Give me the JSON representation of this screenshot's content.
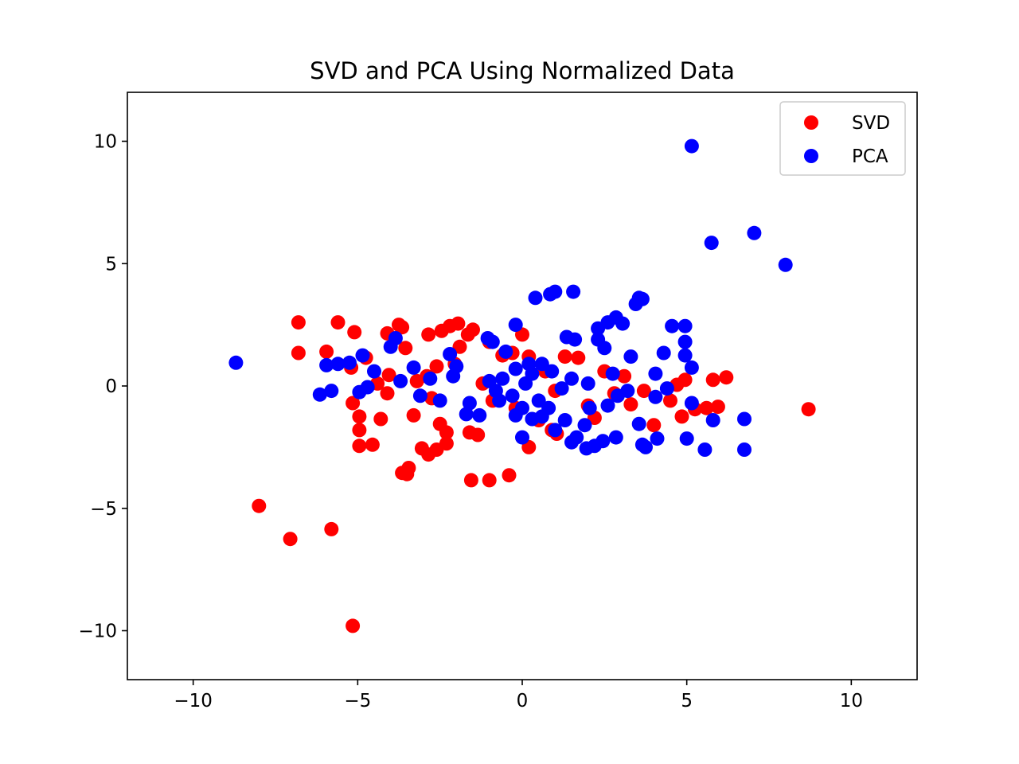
{
  "chart_data": {
    "type": "scatter",
    "title": "SVD and PCA Using Normalized Data",
    "xlabel": "",
    "ylabel": "",
    "xlim": [
      -12,
      12
    ],
    "ylim": [
      -12,
      12
    ],
    "xticks": [
      {
        "value": -10,
        "label": "−10"
      },
      {
        "value": -5,
        "label": "−5"
      },
      {
        "value": 0,
        "label": "0"
      },
      {
        "value": 5,
        "label": "5"
      },
      {
        "value": 10,
        "label": "10"
      }
    ],
    "yticks": [
      {
        "value": -10,
        "label": "−10"
      },
      {
        "value": -5,
        "label": "−5"
      },
      {
        "value": 0,
        "label": "0"
      },
      {
        "value": 5,
        "label": "5"
      },
      {
        "value": 10,
        "label": "10"
      }
    ],
    "grid": false,
    "legend": "top-right",
    "series": [
      {
        "name": "SVD",
        "color": "#ff0000",
        "points": [
          [
            -5.15,
            -9.8
          ],
          [
            -7.05,
            -6.25
          ],
          [
            -8.0,
            -4.9
          ],
          [
            -5.8,
            -5.85
          ],
          [
            8.7,
            -0.95
          ],
          [
            6.2,
            0.35
          ],
          [
            5.8,
            0.25
          ],
          [
            -6.8,
            2.6
          ],
          [
            -5.6,
            2.6
          ],
          [
            -6.8,
            1.35
          ],
          [
            -5.95,
            1.4
          ],
          [
            -5.1,
            2.2
          ],
          [
            -5.2,
            0.75
          ],
          [
            -4.75,
            1.15
          ],
          [
            -5.15,
            -0.7
          ],
          [
            -4.95,
            -1.25
          ],
          [
            -4.95,
            -1.8
          ],
          [
            -4.95,
            -2.45
          ],
          [
            -4.55,
            -2.4
          ],
          [
            -4.3,
            -1.35
          ],
          [
            -4.1,
            -0.3
          ],
          [
            -4.05,
            0.45
          ],
          [
            -4.1,
            2.15
          ],
          [
            -3.75,
            2.5
          ],
          [
            -3.55,
            1.55
          ],
          [
            -3.65,
            2.4
          ],
          [
            -3.3,
            -1.2
          ],
          [
            -3.45,
            -3.35
          ],
          [
            -3.65,
            -3.55
          ],
          [
            -3.5,
            -3.6
          ],
          [
            -3.05,
            -2.55
          ],
          [
            -2.85,
            -2.8
          ],
          [
            -2.6,
            -2.6
          ],
          [
            -2.5,
            -1.55
          ],
          [
            -2.3,
            -1.9
          ],
          [
            -2.3,
            -2.35
          ],
          [
            -2.75,
            -0.5
          ],
          [
            -2.9,
            0.4
          ],
          [
            -2.6,
            0.8
          ],
          [
            -2.85,
            2.1
          ],
          [
            -2.45,
            2.25
          ],
          [
            -2.2,
            2.45
          ],
          [
            -1.95,
            2.55
          ],
          [
            -1.65,
            2.1
          ],
          [
            -1.5,
            2.3
          ],
          [
            -1.9,
            1.6
          ],
          [
            -2.05,
            0.9
          ],
          [
            -1.6,
            -1.9
          ],
          [
            -1.35,
            -2.0
          ],
          [
            -1.55,
            -3.85
          ],
          [
            -1.0,
            -3.85
          ],
          [
            -0.4,
            -3.65
          ],
          [
            0.2,
            -2.5
          ],
          [
            0.0,
            2.1
          ],
          [
            -0.6,
            1.25
          ],
          [
            -0.3,
            1.35
          ],
          [
            0.2,
            1.2
          ],
          [
            0.5,
            -1.4
          ],
          [
            0.9,
            -1.8
          ],
          [
            1.05,
            -1.95
          ],
          [
            1.3,
            1.2
          ],
          [
            1.7,
            1.15
          ],
          [
            2.0,
            -0.8
          ],
          [
            2.2,
            -1.3
          ],
          [
            2.8,
            -0.3
          ],
          [
            3.1,
            0.4
          ],
          [
            3.3,
            -0.75
          ],
          [
            4.0,
            -1.6
          ],
          [
            4.5,
            -0.6
          ],
          [
            4.7,
            0.05
          ],
          [
            4.85,
            -1.25
          ],
          [
            4.95,
            0.25
          ],
          [
            5.25,
            -0.95
          ],
          [
            5.6,
            -0.9
          ],
          [
            5.95,
            -0.85
          ],
          [
            -1.2,
            0.1
          ],
          [
            -0.9,
            -0.6
          ],
          [
            -0.2,
            -0.9
          ],
          [
            0.7,
            0.6
          ],
          [
            1.0,
            -0.2
          ],
          [
            -3.2,
            0.2
          ],
          [
            -4.4,
            0.1
          ],
          [
            -1.0,
            1.8
          ],
          [
            2.5,
            0.6
          ],
          [
            3.7,
            -0.2
          ]
        ]
      },
      {
        "name": "PCA",
        "color": "#0000ff",
        "points": [
          [
            5.15,
            9.8
          ],
          [
            5.75,
            5.85
          ],
          [
            7.05,
            6.25
          ],
          [
            8.0,
            4.95
          ],
          [
            -8.7,
            0.95
          ],
          [
            6.75,
            -2.6
          ],
          [
            6.75,
            -1.35
          ],
          [
            5.55,
            -2.6
          ],
          [
            5.0,
            -2.15
          ],
          [
            5.8,
            -1.4
          ],
          [
            5.15,
            -0.7
          ],
          [
            5.15,
            0.75
          ],
          [
            4.95,
            1.25
          ],
          [
            4.95,
            1.8
          ],
          [
            4.95,
            2.45
          ],
          [
            4.55,
            2.45
          ],
          [
            4.3,
            1.35
          ],
          [
            4.05,
            0.5
          ],
          [
            4.05,
            -0.45
          ],
          [
            4.1,
            -2.15
          ],
          [
            3.75,
            -2.5
          ],
          [
            3.55,
            -1.55
          ],
          [
            3.65,
            -2.4
          ],
          [
            3.3,
            1.2
          ],
          [
            3.45,
            3.35
          ],
          [
            3.65,
            3.55
          ],
          [
            3.55,
            3.6
          ],
          [
            3.05,
            2.55
          ],
          [
            2.85,
            2.8
          ],
          [
            2.6,
            2.6
          ],
          [
            2.5,
            1.55
          ],
          [
            2.3,
            1.9
          ],
          [
            2.3,
            2.35
          ],
          [
            2.75,
            0.5
          ],
          [
            2.9,
            -0.4
          ],
          [
            2.6,
            -0.8
          ],
          [
            2.85,
            -2.1
          ],
          [
            2.45,
            -2.25
          ],
          [
            2.2,
            -2.45
          ],
          [
            1.95,
            -2.55
          ],
          [
            1.65,
            -2.1
          ],
          [
            1.5,
            -2.3
          ],
          [
            1.9,
            -1.6
          ],
          [
            2.05,
            -0.9
          ],
          [
            1.6,
            1.9
          ],
          [
            1.35,
            2.0
          ],
          [
            1.55,
            3.85
          ],
          [
            1.0,
            3.85
          ],
          [
            0.85,
            3.75
          ],
          [
            0.4,
            3.6
          ],
          [
            -0.2,
            2.5
          ],
          [
            0.0,
            -2.1
          ],
          [
            0.6,
            -1.25
          ],
          [
            0.3,
            -1.35
          ],
          [
            -0.2,
            -1.2
          ],
          [
            -0.5,
            1.4
          ],
          [
            -0.9,
            1.8
          ],
          [
            -1.05,
            1.95
          ],
          [
            -1.3,
            -1.2
          ],
          [
            -1.7,
            -1.15
          ],
          [
            -2.0,
            0.8
          ],
          [
            -2.2,
            1.3
          ],
          [
            -2.8,
            0.3
          ],
          [
            -3.1,
            -0.4
          ],
          [
            -3.3,
            0.75
          ],
          [
            -4.0,
            1.6
          ],
          [
            -4.5,
            0.6
          ],
          [
            -4.7,
            -0.05
          ],
          [
            -4.85,
            1.25
          ],
          [
            -4.95,
            -0.25
          ],
          [
            -5.25,
            0.95
          ],
          [
            -5.6,
            0.9
          ],
          [
            -5.95,
            0.85
          ],
          [
            -6.15,
            -0.35
          ],
          [
            -5.8,
            -0.2
          ],
          [
            -3.85,
            1.95
          ],
          [
            1.2,
            -0.1
          ],
          [
            0.9,
            0.6
          ],
          [
            0.2,
            0.9
          ],
          [
            -0.7,
            -0.6
          ],
          [
            -1.0,
            0.2
          ],
          [
            3.2,
            -0.2
          ],
          [
            4.4,
            -0.1
          ],
          [
            1.0,
            -1.8
          ],
          [
            -2.5,
            -0.6
          ],
          [
            -3.7,
            0.2
          ],
          [
            0.1,
            0.1
          ],
          [
            -0.3,
            -0.4
          ],
          [
            0.5,
            -0.6
          ],
          [
            -0.6,
            0.3
          ],
          [
            0.3,
            0.5
          ],
          [
            0.8,
            -0.9
          ],
          [
            -0.8,
            -0.2
          ],
          [
            1.5,
            0.3
          ],
          [
            -1.6,
            -0.7
          ],
          [
            2.0,
            0.1
          ],
          [
            -2.1,
            0.4
          ],
          [
            0.0,
            -0.9
          ],
          [
            0.6,
            0.9
          ],
          [
            -0.2,
            0.7
          ],
          [
            1.3,
            -1.4
          ]
        ]
      }
    ]
  }
}
